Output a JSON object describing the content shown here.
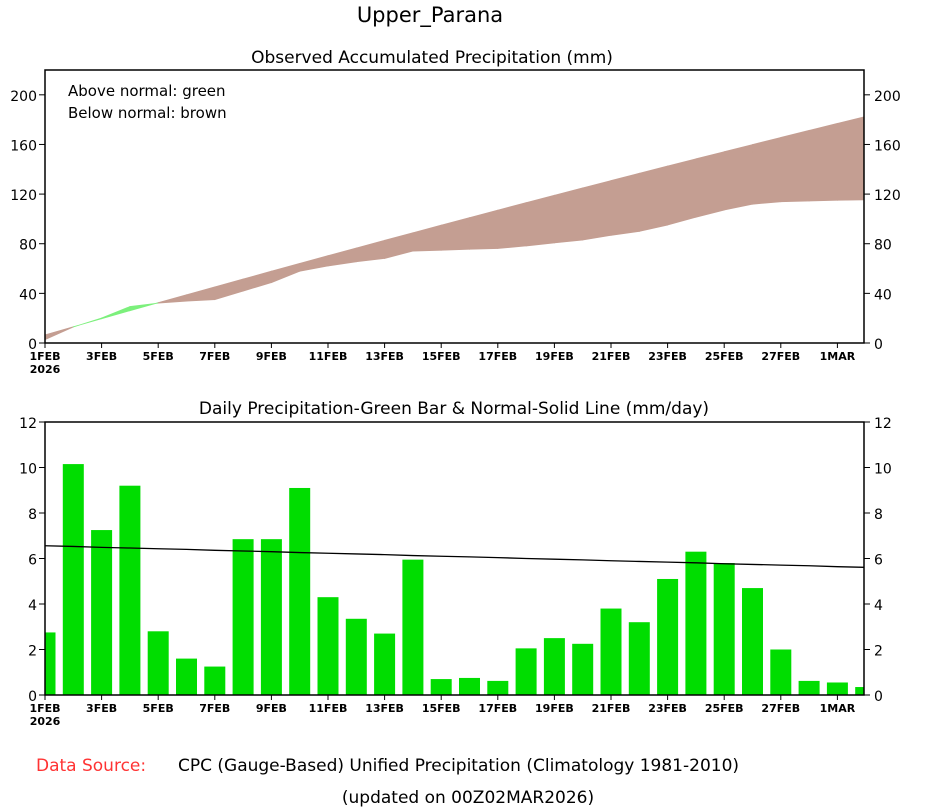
{
  "title": "Upper_Parana",
  "footer": {
    "source_label": "Data Source:",
    "source_text": "CPC (Gauge-Based) Unified Precipitation (Climatology 1981-2010)",
    "updated": "(updated on 00Z02MAR2026)",
    "source_label_color": "#ff3333"
  },
  "chart_data": [
    {
      "type": "area",
      "title": "Observed Accumulated Precipitation (mm)",
      "legend": [
        "Above normal: green",
        "Below normal: brown"
      ],
      "legend_placement": "top-left",
      "ylim": [
        0,
        220
      ],
      "yticks": [
        0,
        40,
        80,
        120,
        160,
        200
      ],
      "xticks": [
        "1FEB",
        "3FEB",
        "5FEB",
        "7FEB",
        "9FEB",
        "11FEB",
        "13FEB",
        "15FEB",
        "17FEB",
        "19FEB",
        "21FEB",
        "23FEB",
        "25FEB",
        "27FEB",
        "1MAR"
      ],
      "xyear": "2026",
      "days": 30,
      "observed_accum": [
        2.75,
        12.9,
        20.15,
        29.35,
        32.15,
        33.75,
        35.0,
        41.85,
        48.7,
        57.8,
        62.1,
        65.45,
        68.15,
        74.1,
        74.8,
        75.55,
        76.17,
        78.22,
        80.72,
        82.97,
        86.77,
        89.97,
        95.07,
        101.37,
        107.17,
        111.87,
        113.87,
        114.49,
        115.04,
        115.39
      ],
      "normal_accum": [
        6.56,
        13.09,
        19.58,
        26.04,
        32.47,
        38.87,
        45.23,
        51.56,
        57.86,
        64.12,
        70.35,
        76.55,
        82.72,
        88.85,
        94.95,
        101.02,
        107.06,
        113.06,
        119.03,
        124.97,
        130.87,
        136.74,
        142.58,
        148.39,
        154.16,
        159.9,
        165.61,
        171.29,
        176.93,
        182.54
      ],
      "colors": {
        "above": "#7cf07c",
        "below": "#c49e92"
      }
    },
    {
      "type": "bar",
      "title": "Daily Precipitation-Green Bar & Normal-Solid Line (mm/day)",
      "ylim": [
        0,
        12
      ],
      "yticks": [
        0,
        2,
        4,
        6,
        8,
        10,
        12
      ],
      "xticks": [
        "1FEB",
        "3FEB",
        "5FEB",
        "7FEB",
        "9FEB",
        "11FEB",
        "13FEB",
        "15FEB",
        "17FEB",
        "19FEB",
        "21FEB",
        "23FEB",
        "25FEB",
        "27FEB",
        "1MAR"
      ],
      "xyear": "2026",
      "days": 30,
      "observed": [
        2.75,
        10.15,
        7.25,
        9.2,
        2.8,
        1.6,
        1.25,
        6.85,
        6.85,
        9.1,
        4.3,
        3.35,
        2.7,
        5.95,
        0.7,
        0.75,
        0.62,
        2.05,
        2.5,
        2.25,
        3.8,
        3.2,
        5.1,
        6.3,
        5.8,
        4.7,
        2.0,
        0.62,
        0.55,
        0.35
      ],
      "normal": [
        6.56,
        6.53,
        6.49,
        6.46,
        6.43,
        6.4,
        6.36,
        6.33,
        6.3,
        6.26,
        6.23,
        6.2,
        6.17,
        6.13,
        6.1,
        6.07,
        6.04,
        6.0,
        5.97,
        5.94,
        5.9,
        5.87,
        5.84,
        5.81,
        5.77,
        5.74,
        5.71,
        5.68,
        5.64,
        5.61
      ],
      "colors": {
        "bar": "#00dd00",
        "line": "#000000"
      }
    }
  ]
}
